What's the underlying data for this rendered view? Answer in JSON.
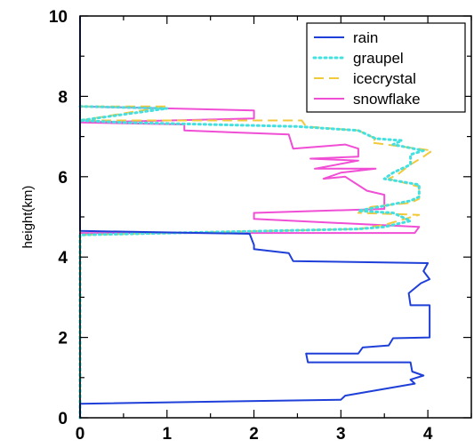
{
  "chart_data": {
    "type": "line",
    "title": "",
    "xlabel": "",
    "ylabel": "height(km)",
    "xlim": [
      0,
      4.5
    ],
    "ylim": [
      0,
      10
    ],
    "x_ticks": [
      "0",
      "1",
      "2",
      "3",
      "4"
    ],
    "y_ticks": [
      "0",
      "2",
      "4",
      "6",
      "8",
      "10"
    ],
    "grid": false,
    "legend_position": "top-right",
    "series": [
      {
        "name": "rain",
        "color": "#1e3fd8",
        "dash": "solid",
        "points": [
          [
            0,
            10
          ],
          [
            0,
            4.65
          ],
          [
            1.95,
            4.58
          ],
          [
            2.0,
            4.3
          ],
          [
            2.0,
            4.2
          ],
          [
            2.4,
            4.1
          ],
          [
            2.45,
            3.9
          ],
          [
            4.0,
            3.85
          ],
          [
            3.95,
            3.65
          ],
          [
            4.02,
            3.45
          ],
          [
            3.92,
            3.35
          ],
          [
            3.78,
            3.1
          ],
          [
            3.8,
            2.8
          ],
          [
            4.02,
            2.8
          ],
          [
            4.02,
            2.0
          ],
          [
            3.6,
            1.98
          ],
          [
            3.55,
            1.8
          ],
          [
            3.25,
            1.75
          ],
          [
            3.2,
            1.6
          ],
          [
            2.6,
            1.6
          ],
          [
            2.62,
            1.38
          ],
          [
            3.8,
            1.38
          ],
          [
            3.82,
            1.15
          ],
          [
            3.95,
            1.05
          ],
          [
            3.8,
            0.95
          ],
          [
            3.85,
            0.85
          ],
          [
            3.05,
            0.55
          ],
          [
            3.0,
            0.45
          ],
          [
            0,
            0.35
          ],
          [
            0,
            0
          ]
        ]
      },
      {
        "name": "graupel",
        "color": "#44e0e0",
        "dash": "dotted",
        "points": [
          [
            0,
            7.75
          ],
          [
            1.0,
            7.7
          ],
          [
            0,
            7.4
          ],
          [
            0.5,
            7.35
          ],
          [
            2.5,
            7.25
          ],
          [
            3.2,
            7.15
          ],
          [
            3.4,
            6.95
          ],
          [
            3.7,
            6.9
          ],
          [
            3.6,
            6.8
          ],
          [
            3.95,
            6.65
          ],
          [
            3.8,
            6.55
          ],
          [
            3.8,
            6.3
          ],
          [
            3.6,
            6.1
          ],
          [
            3.5,
            5.95
          ],
          [
            3.9,
            5.8
          ],
          [
            3.9,
            5.5
          ],
          [
            3.8,
            5.4
          ],
          [
            3.2,
            5.15
          ],
          [
            3.6,
            5.1
          ],
          [
            3.8,
            4.9
          ],
          [
            3.5,
            4.75
          ],
          [
            3.2,
            4.7
          ],
          [
            0,
            4.55
          ],
          [
            0,
            0
          ]
        ]
      },
      {
        "name": "icecrystal",
        "color": "#f2c93a",
        "dash": "dashed",
        "points": [
          [
            0,
            7.75
          ],
          [
            1.0,
            7.75
          ],
          [
            0,
            7.4
          ],
          [
            2.55,
            7.4
          ],
          [
            2.6,
            7.25
          ],
          [
            3.2,
            7.15
          ],
          [
            3.4,
            6.95
          ],
          [
            3.35,
            6.85
          ],
          [
            4.05,
            6.65
          ],
          [
            3.95,
            6.5
          ],
          [
            3.8,
            6.3
          ],
          [
            3.65,
            6.05
          ],
          [
            3.55,
            5.95
          ],
          [
            3.9,
            5.75
          ],
          [
            3.9,
            5.45
          ],
          [
            3.8,
            5.35
          ],
          [
            3.35,
            5.25
          ],
          [
            3.2,
            5.1
          ],
          [
            3.9,
            5.05
          ],
          [
            3.5,
            4.8
          ],
          [
            3.2,
            4.7
          ],
          [
            0,
            4.55
          ],
          [
            0,
            0
          ]
        ]
      },
      {
        "name": "snowflake",
        "color": "#f04fd5",
        "dash": "solid",
        "points": [
          [
            0,
            7.75
          ],
          [
            2.0,
            7.65
          ],
          [
            2.0,
            7.45
          ],
          [
            0,
            7.35
          ],
          [
            1.2,
            7.3
          ],
          [
            1.2,
            7.15
          ],
          [
            2.4,
            7.05
          ],
          [
            2.45,
            6.7
          ],
          [
            3.05,
            6.8
          ],
          [
            3.2,
            6.7
          ],
          [
            3.2,
            6.5
          ],
          [
            2.65,
            6.45
          ],
          [
            3.2,
            6.4
          ],
          [
            2.7,
            6.2
          ],
          [
            3.4,
            6.2
          ],
          [
            3.0,
            6.1
          ],
          [
            2.8,
            5.95
          ],
          [
            3.05,
            6.0
          ],
          [
            3.3,
            5.65
          ],
          [
            3.5,
            5.55
          ],
          [
            3.5,
            5.2
          ],
          [
            2.0,
            5.1
          ],
          [
            2.0,
            4.95
          ],
          [
            3.9,
            4.75
          ],
          [
            3.85,
            4.6
          ],
          [
            0,
            4.6
          ],
          [
            0,
            0
          ]
        ]
      }
    ]
  }
}
